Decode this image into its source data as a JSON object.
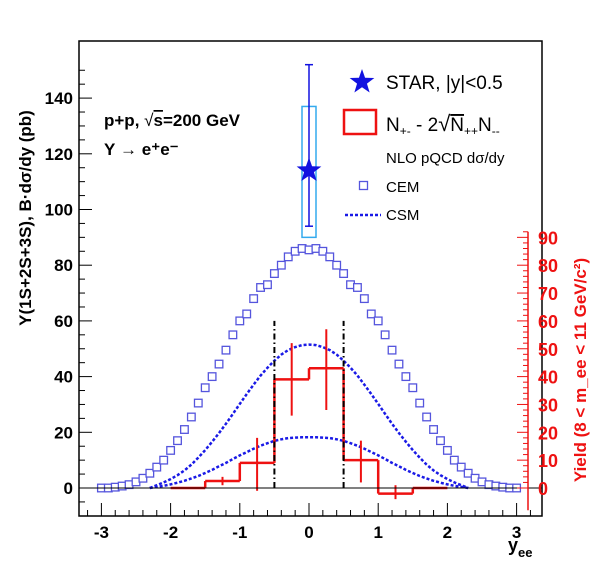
{
  "chart_data": {
    "type": "scatter",
    "collision_label": "p+p, √s=200 GeV",
    "collision_prefix": "p+p, ",
    "collision_sqrt_arg": "s",
    "collision_energy": "=200 GeV",
    "decay_label": "Υ → e⁺e⁻",
    "xlabel": "y_ee",
    "xlabel_main": "y",
    "xlabel_sub": "ee",
    "ylabel": "Υ(1S+2S+3S), B·dσ/dy (pb)",
    "ylabel_right": "Yield (8 < m_ee < 11 GeV/c²)",
    "xlim": [
      -3.2,
      3.2
    ],
    "ylim": [
      -8,
      155
    ],
    "ylim_right": [
      -8,
      90
    ],
    "x_ticks": [
      -3,
      -2,
      -1,
      0,
      1,
      2,
      3
    ],
    "x_tick_labels": [
      "-3",
      "-2",
      "-1",
      "0",
      "1",
      "2",
      "3"
    ],
    "y_ticks": [
      0,
      20,
      40,
      60,
      80,
      100,
      120,
      140
    ],
    "y_tick_labels": [
      "0",
      "20",
      "40",
      "60",
      "80",
      "100",
      "120",
      "140"
    ],
    "y_right_ticks": [
      0,
      10,
      20,
      30,
      40,
      50,
      60,
      70,
      80,
      90
    ],
    "y_right_tick_labels": [
      "0",
      "10",
      "20",
      "30",
      "40",
      "50",
      "60",
      "70",
      "80",
      "90"
    ],
    "legend": {
      "placement": "top-right",
      "star": "STAR, |y|<0.5",
      "hist_prefix": "N",
      "hist_prefix_sub": "+-",
      "hist_mid": " - 2",
      "hist_root_a": "N",
      "hist_root_a_sub": "++",
      "hist_root_b": "N",
      "hist_root_b_sub": "--",
      "nlo_title": "NLO pQCD dσ/dy",
      "cem": "CEM",
      "csm": "CSM"
    },
    "star_point": {
      "x": 0.0,
      "y": 114,
      "y_err_low": 94,
      "y_err_high": 152,
      "sys_low": 90,
      "sys_high": 137
    },
    "cem_series": {
      "name": "CEM",
      "x": [
        -3.0,
        -2.9,
        -2.8,
        -2.7,
        -2.6,
        -2.5,
        -2.4,
        -2.3,
        -2.2,
        -2.1,
        -2.0,
        -1.9,
        -1.8,
        -1.7,
        -1.6,
        -1.5,
        -1.4,
        -1.3,
        -1.2,
        -1.1,
        -1.0,
        -0.9,
        -0.8,
        -0.7,
        -0.6,
        -0.5,
        -0.4,
        -0.3,
        -0.2,
        -0.1,
        0.0,
        0.1,
        0.2,
        0.3,
        0.4,
        0.5,
        0.6,
        0.7,
        0.8,
        0.9,
        1.0,
        1.1,
        1.2,
        1.3,
        1.4,
        1.5,
        1.6,
        1.7,
        1.8,
        1.9,
        2.0,
        2.1,
        2.2,
        2.3,
        2.4,
        2.5,
        2.6,
        2.7,
        2.8,
        2.9,
        3.0
      ],
      "values": [
        0,
        0,
        0.3,
        0.7,
        1.2,
        2.2,
        3.5,
        5.3,
        7.5,
        10,
        13.5,
        17,
        21,
        25.5,
        30.5,
        36,
        40,
        44.5,
        49.5,
        55,
        60,
        62.5,
        68,
        72,
        73,
        77,
        80,
        83,
        85,
        86,
        85.5,
        86,
        85,
        83,
        80,
        77,
        73,
        72,
        68,
        62.5,
        60,
        55,
        49.5,
        44.5,
        40,
        36,
        30.5,
        25.5,
        21,
        17,
        13.5,
        10,
        7.5,
        5.3,
        3.5,
        2.2,
        1.2,
        0.7,
        0.3,
        0,
        0
      ]
    },
    "csm_series_high": {
      "name": "CSM",
      "x": [
        -2.3,
        -2.2,
        -2.1,
        -2.0,
        -1.9,
        -1.8,
        -1.7,
        -1.6,
        -1.5,
        -1.4,
        -1.3,
        -1.2,
        -1.1,
        -1.0,
        -0.9,
        -0.8,
        -0.7,
        -0.6,
        -0.5,
        -0.4,
        -0.3,
        -0.2,
        -0.1,
        0.0,
        0.1,
        0.2,
        0.3,
        0.4,
        0.5,
        0.6,
        0.7,
        0.8,
        0.9,
        1.0,
        1.1,
        1.2,
        1.3,
        1.4,
        1.5,
        1.6,
        1.7,
        1.8,
        1.9,
        2.0,
        2.1,
        2.2,
        2.3
      ],
      "values": [
        0,
        1.0,
        2.0,
        3.2,
        4.6,
        6.3,
        8.4,
        10.9,
        13.6,
        16.6,
        19.7,
        23.1,
        26.6,
        30.2,
        33.7,
        37.1,
        40.4,
        43.2,
        45.7,
        47.9,
        49.5,
        50.6,
        51.3,
        51.5,
        51.3,
        50.6,
        49.5,
        47.9,
        45.7,
        43.2,
        40.4,
        37.1,
        33.7,
        30.2,
        26.6,
        23.1,
        19.7,
        16.6,
        13.6,
        10.9,
        8.4,
        6.3,
        4.6,
        3.2,
        2.0,
        1.0,
        0
      ]
    },
    "csm_series_low": {
      "name": "",
      "x": [
        -2.3,
        -2.2,
        -2.1,
        -2.0,
        -1.9,
        -1.8,
        -1.7,
        -1.6,
        -1.5,
        -1.4,
        -1.3,
        -1.2,
        -1.1,
        -1.0,
        -0.9,
        -0.8,
        -0.7,
        -0.6,
        -0.5,
        -0.4,
        -0.3,
        -0.2,
        -0.1,
        0.0,
        0.1,
        0.2,
        0.3,
        0.4,
        0.5,
        0.6,
        0.7,
        0.8,
        0.9,
        1.0,
        1.1,
        1.2,
        1.3,
        1.4,
        1.5,
        1.6,
        1.7,
        1.8,
        1.9,
        2.0,
        2.1,
        2.2,
        2.3
      ],
      "values": [
        0,
        0.4,
        0.8,
        1.3,
        1.9,
        2.6,
        3.4,
        4.3,
        5.4,
        6.5,
        7.8,
        9.0,
        10.4,
        11.7,
        12.9,
        14.1,
        15.2,
        16.1,
        16.9,
        17.5,
        17.9,
        18.1,
        18.2,
        18.2,
        18.2,
        18.1,
        17.9,
        17.5,
        16.9,
        16.1,
        15.2,
        14.1,
        12.9,
        11.7,
        10.4,
        9.0,
        7.8,
        6.5,
        5.4,
        4.3,
        3.4,
        2.6,
        1.9,
        1.3,
        0.8,
        0.4,
        0
      ]
    },
    "yield_hist": {
      "name": "N+- - 2√(N++N--)",
      "bin_edges": [
        -2.0,
        -1.5,
        -1.0,
        -0.5,
        0.0,
        0.5,
        1.0,
        1.5,
        2.0
      ],
      "values": [
        0,
        2.5,
        9,
        39,
        43,
        10,
        -2,
        0
      ],
      "errors": [
        {
          "x": -1.25,
          "low": 1,
          "high": 4
        },
        {
          "x": -0.75,
          "low": -1,
          "high": 18
        },
        {
          "x": -0.25,
          "low": 26,
          "high": 52
        },
        {
          "x": 0.25,
          "low": 28,
          "high": 57
        },
        {
          "x": 0.75,
          "low": 2,
          "high": 17
        },
        {
          "x": 1.25,
          "low": -4,
          "high": 1
        }
      ]
    },
    "acceptance_lines_x": [
      -0.5,
      0.5
    ],
    "acceptance_lines_top": 60
  },
  "colors": {
    "axis": "#000000",
    "star": "#1212e0",
    "sys_box": "#33aaee",
    "cem": "#5555dd",
    "csm": "#1a1ae6",
    "yield": "#ee1111"
  }
}
